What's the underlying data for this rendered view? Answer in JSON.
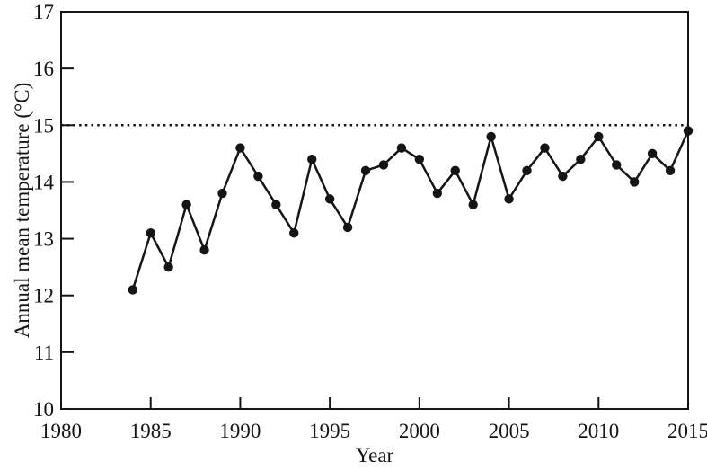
{
  "chart_data": {
    "type": "line",
    "title": "",
    "xlabel": "Year",
    "ylabel": "Annual mean temperature (°C)",
    "x": [
      1984,
      1985,
      1986,
      1987,
      1988,
      1989,
      1990,
      1991,
      1992,
      1993,
      1994,
      1995,
      1996,
      1997,
      1998,
      1999,
      2000,
      2001,
      2002,
      2003,
      2004,
      2005,
      2006,
      2007,
      2008,
      2009,
      2010,
      2011,
      2012,
      2013,
      2014,
      2015
    ],
    "y": [
      12.1,
      13.1,
      12.5,
      13.6,
      12.8,
      13.8,
      14.6,
      14.1,
      13.6,
      13.1,
      14.4,
      13.7,
      13.2,
      14.2,
      14.3,
      14.6,
      14.4,
      13.8,
      14.2,
      13.6,
      14.8,
      13.7,
      14.2,
      14.6,
      14.1,
      14.4,
      14.8,
      14.3,
      14.0,
      14.5,
      14.2,
      14.9
    ],
    "xlim": [
      1980,
      2015
    ],
    "ylim": [
      10,
      17
    ],
    "x_tick_labels": [
      1980,
      1985,
      1990,
      1995,
      2000,
      2005,
      2010,
      2015
    ],
    "y_tick_labels": [
      10,
      11,
      12,
      13,
      14,
      15,
      16,
      17
    ],
    "x_inner_ticks": [
      1985,
      1990,
      1995,
      2000,
      2005,
      2010
    ],
    "y_inner_ticks": [
      11,
      12,
      13,
      14,
      15,
      16
    ],
    "reference_line": {
      "y": 15,
      "style": "dotted"
    },
    "grid": false,
    "legend_position": "none",
    "marker": "circle",
    "line_color": "#151515",
    "marker_color": "#151515",
    "axis_color": "#151515"
  }
}
